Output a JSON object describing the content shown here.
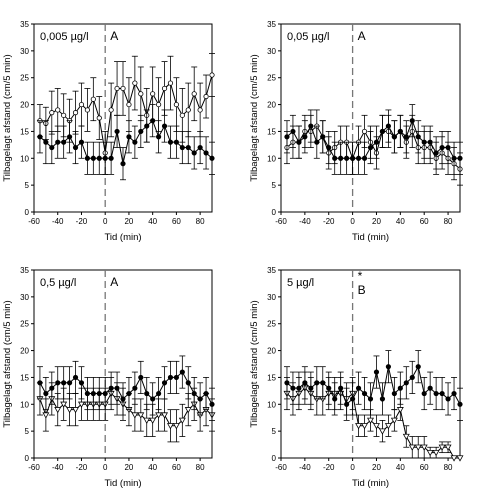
{
  "chart_data": [
    {
      "type": "line",
      "concentration_label": "0,005 µg/l",
      "letter": "A",
      "star": "",
      "xlabel": "Tid (min)",
      "ylabel": "Tilbagelagt afstand (cm/5 min)",
      "xlim": [
        -60,
        90
      ],
      "ylim": [
        0,
        35
      ],
      "xticks": [
        -60,
        -40,
        -20,
        0,
        20,
        40,
        60,
        80
      ],
      "yticks": [
        0,
        5,
        10,
        15,
        20,
        25,
        30,
        35
      ],
      "vline_x": 0,
      "grid": false,
      "x": [
        -55,
        -50,
        -45,
        -40,
        -35,
        -30,
        -25,
        -20,
        -15,
        -10,
        -5,
        0,
        5,
        10,
        15,
        20,
        25,
        30,
        35,
        40,
        45,
        50,
        55,
        60,
        65,
        70,
        75,
        80,
        85,
        90
      ],
      "series": [
        {
          "marker": "open-circle",
          "values": [
            17,
            16.5,
            18.5,
            19,
            18,
            17,
            18.5,
            20,
            19,
            21,
            17.5,
            11,
            19,
            23,
            23,
            20,
            24,
            22,
            18,
            22,
            20,
            23,
            24,
            20,
            18,
            19,
            22,
            19,
            21.5,
            25.5
          ],
          "errors": [
            3,
            3,
            4,
            4,
            4,
            4,
            4,
            4,
            4,
            4,
            4,
            4,
            5,
            5,
            5,
            5,
            5,
            5,
            5,
            5,
            5,
            5,
            5,
            5,
            5,
            5,
            5,
            5,
            4,
            4
          ]
        },
        {
          "marker": "filled-circle",
          "values": [
            14,
            13,
            12,
            13,
            13,
            14,
            12,
            13,
            10,
            10,
            10,
            10,
            10,
            15,
            9,
            14,
            13,
            15,
            16,
            17,
            14,
            16,
            13,
            13,
            12,
            12,
            11,
            12,
            11,
            10
          ],
          "errors": [
            3,
            4,
            3,
            3,
            3,
            3,
            3,
            3,
            3,
            3,
            3,
            3,
            3,
            3,
            3,
            3,
            3,
            3,
            3,
            3,
            3,
            3,
            3,
            3,
            3,
            3,
            3,
            3,
            3,
            3
          ]
        }
      ]
    },
    {
      "type": "line",
      "concentration_label": "0,05 µg/l",
      "letter": "A",
      "star": "",
      "xlabel": "Tid (min)",
      "ylabel": "Tilbagelagt afstand (cm/5 min)",
      "xlim": [
        -60,
        90
      ],
      "ylim": [
        0,
        35
      ],
      "xticks": [
        -60,
        -40,
        -20,
        0,
        20,
        40,
        60,
        80
      ],
      "yticks": [
        0,
        5,
        10,
        15,
        20,
        25,
        30,
        35
      ],
      "vline_x": 0,
      "grid": false,
      "x": [
        -55,
        -50,
        -45,
        -40,
        -35,
        -30,
        -25,
        -20,
        -15,
        -10,
        -5,
        0,
        5,
        10,
        15,
        20,
        25,
        30,
        35,
        40,
        45,
        50,
        55,
        60,
        65,
        70,
        75,
        80,
        85,
        90
      ],
      "series": [
        {
          "marker": "open-circle",
          "values": [
            12,
            13,
            13,
            15,
            15,
            16,
            14,
            11,
            12,
            13,
            13,
            10,
            13,
            15,
            13,
            11,
            15,
            15,
            14,
            15,
            13,
            15,
            12,
            12,
            12,
            10,
            11,
            10,
            9,
            8
          ],
          "errors": [
            3,
            3,
            3,
            3,
            3,
            3,
            3,
            3,
            3,
            3,
            3,
            3,
            3,
            3,
            3,
            3,
            3,
            3,
            3,
            3,
            3,
            3,
            3,
            3,
            3,
            3,
            3,
            3,
            3,
            3
          ]
        },
        {
          "marker": "filled-circle",
          "values": [
            14,
            15,
            13,
            14,
            16,
            13,
            14,
            12,
            10,
            10,
            10,
            10,
            10,
            10,
            12,
            13,
            15,
            16,
            14,
            15,
            14,
            17,
            14,
            13,
            13,
            11,
            12,
            12,
            10,
            10
          ],
          "errors": [
            3,
            3,
            3,
            3,
            3,
            3,
            3,
            3,
            3,
            3,
            3,
            3,
            3,
            3,
            3,
            3,
            3,
            3,
            3,
            3,
            3,
            3,
            3,
            3,
            3,
            3,
            3,
            3,
            3,
            3
          ]
        }
      ]
    },
    {
      "type": "line",
      "concentration_label": "0,5 µg/l",
      "letter": "A",
      "star": "",
      "xlabel": "Tid (min)",
      "ylabel": "Tilbagelagt afstand (cm/5 min)",
      "xlim": [
        -60,
        90
      ],
      "ylim": [
        0,
        35
      ],
      "xticks": [
        -60,
        -40,
        -20,
        0,
        20,
        40,
        60,
        80
      ],
      "yticks": [
        0,
        5,
        10,
        15,
        20,
        25,
        30,
        35
      ],
      "vline_x": 0,
      "grid": false,
      "x": [
        -55,
        -50,
        -45,
        -40,
        -35,
        -30,
        -25,
        -20,
        -15,
        -10,
        -5,
        0,
        5,
        10,
        15,
        20,
        25,
        30,
        35,
        40,
        45,
        50,
        55,
        60,
        65,
        70,
        75,
        80,
        85,
        90
      ],
      "series": [
        {
          "marker": "open-triangle",
          "values": [
            11,
            8,
            11,
            9,
            10,
            9,
            9,
            10,
            10,
            10,
            10,
            10,
            12,
            11,
            10,
            9,
            8,
            8,
            7,
            7,
            8,
            8,
            6,
            6,
            7,
            9,
            10,
            8,
            9,
            8
          ],
          "errors": [
            3,
            3,
            3,
            3,
            3,
            3,
            3,
            3,
            3,
            3,
            3,
            3,
            3,
            3,
            3,
            3,
            3,
            3,
            3,
            3,
            3,
            3,
            3,
            3,
            3,
            3,
            3,
            3,
            3,
            3
          ]
        },
        {
          "marker": "filled-circle",
          "values": [
            14,
            12,
            13,
            14,
            14,
            14,
            15,
            14,
            12,
            12,
            12,
            12,
            13,
            13,
            11,
            12,
            13,
            15,
            12,
            11,
            12,
            14,
            15,
            15,
            16,
            14,
            12,
            11,
            12,
            10
          ],
          "errors": [
            3,
            3,
            3,
            3,
            3,
            3,
            3,
            3,
            3,
            3,
            3,
            3,
            3,
            3,
            3,
            3,
            3,
            3,
            3,
            3,
            3,
            3,
            3,
            3,
            3,
            3,
            3,
            3,
            3,
            3
          ]
        }
      ]
    },
    {
      "type": "line",
      "concentration_label": "5 µg/l",
      "letter": "B",
      "star": "*",
      "xlabel": "Tid (min)",
      "ylabel": "Tilbagelagt afstand (cm/5 min)",
      "xlim": [
        -60,
        90
      ],
      "ylim": [
        0,
        35
      ],
      "xticks": [
        -60,
        -40,
        -20,
        0,
        20,
        40,
        60,
        80
      ],
      "yticks": [
        0,
        5,
        10,
        15,
        20,
        25,
        30,
        35
      ],
      "vline_x": 0,
      "grid": false,
      "x": [
        -55,
        -50,
        -45,
        -40,
        -35,
        -30,
        -25,
        -20,
        -15,
        -10,
        -5,
        0,
        5,
        10,
        15,
        20,
        25,
        30,
        35,
        40,
        45,
        50,
        55,
        60,
        65,
        70,
        75,
        80,
        85,
        90
      ],
      "series": [
        {
          "marker": "open-triangle",
          "values": [
            12,
            11,
            12,
            13,
            12,
            11,
            11,
            12,
            12,
            12,
            11,
            12,
            6,
            6,
            7,
            6,
            5,
            6,
            7,
            9,
            4,
            2,
            2,
            2,
            1,
            1,
            2,
            2,
            0,
            0
          ],
          "errors": [
            3,
            3,
            3,
            3,
            3,
            3,
            3,
            3,
            3,
            3,
            3,
            3,
            2,
            2,
            2,
            2,
            2,
            2,
            2,
            2,
            2,
            2,
            2,
            2,
            1,
            1,
            1,
            1,
            0,
            0
          ]
        },
        {
          "marker": "filled-circle",
          "values": [
            14,
            13,
            13,
            14,
            13,
            14,
            14,
            13,
            11,
            13,
            10,
            11,
            13,
            12,
            11,
            16,
            11,
            17,
            12,
            13,
            14,
            15,
            17,
            12,
            13,
            12,
            12,
            11,
            12,
            10
          ],
          "errors": [
            3,
            3,
            3,
            3,
            3,
            3,
            3,
            3,
            3,
            3,
            3,
            3,
            3,
            3,
            3,
            3,
            3,
            3,
            3,
            3,
            3,
            3,
            3,
            3,
            3,
            3,
            3,
            3,
            3,
            3
          ]
        }
      ]
    }
  ]
}
